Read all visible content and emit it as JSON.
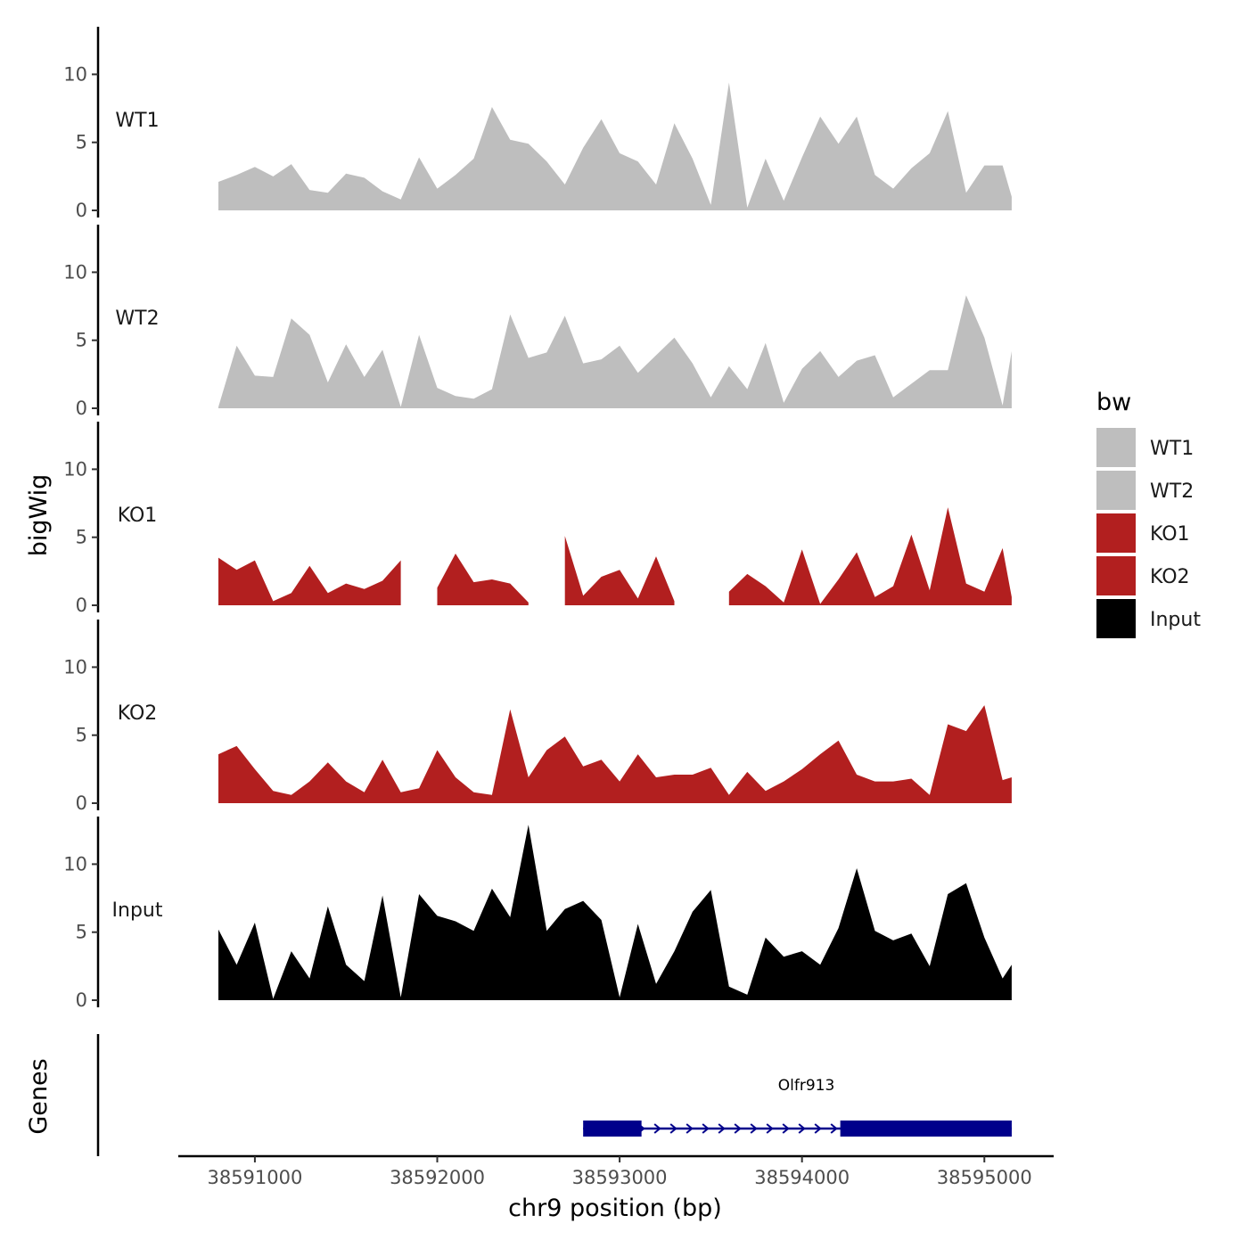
{
  "chart_data": {
    "type": "area",
    "chromosome": "chr9",
    "xlabel": "chr9 position (bp)",
    "ylabel": "bigWig",
    "genes_label": "Genes",
    "xlim": [
      38590580,
      38595380
    ],
    "x_ticks": [
      38591000,
      38592000,
      38593000,
      38594000,
      38595000
    ],
    "x_tick_labels": [
      "38591000",
      "38592000",
      "38593000",
      "38594000",
      "38595000"
    ],
    "ylim": [
      0,
      13.5
    ],
    "y_ticks": [
      0,
      5,
      10
    ],
    "y_tick_labels": [
      "0",
      "5",
      "10"
    ],
    "legend": {
      "title": "bw",
      "position": "right",
      "entries": [
        {
          "label": "WT1",
          "color": "#bebebe"
        },
        {
          "label": "WT2",
          "color": "#bebebe"
        },
        {
          "label": "KO1",
          "color": "#b21f1f"
        },
        {
          "label": "KO2",
          "color": "#b21f1f"
        },
        {
          "label": "Input",
          "color": "#000000"
        }
      ]
    },
    "x_positions": [
      38590800,
      38590900,
      38591000,
      38591100,
      38591200,
      38591300,
      38591400,
      38591500,
      38591600,
      38591700,
      38591800,
      38591900,
      38592000,
      38592100,
      38592200,
      38592300,
      38592400,
      38592500,
      38592600,
      38592700,
      38592800,
      38592900,
      38593000,
      38593100,
      38593200,
      38593300,
      38593400,
      38593500,
      38593600,
      38593700,
      38593800,
      38593900,
      38594000,
      38594100,
      38594200,
      38594300,
      38594400,
      38594500,
      38594600,
      38594700,
      38594800,
      38594900,
      38595000,
      38595100,
      38595150
    ],
    "series": [
      {
        "name": "WT1",
        "color": "#bebebe",
        "values": [
          2.1,
          2.6,
          3.2,
          2.5,
          3.4,
          1.5,
          1.3,
          2.7,
          2.4,
          1.4,
          0.8,
          3.9,
          1.6,
          2.6,
          3.8,
          7.6,
          5.2,
          4.9,
          3.6,
          1.9,
          4.6,
          6.7,
          4.2,
          3.6,
          1.9,
          6.4,
          3.8,
          0.4,
          9.4,
          0.2,
          3.8,
          0.7,
          3.9,
          6.9,
          4.9,
          6.9,
          2.6,
          1.6,
          3.1,
          4.2,
          7.3,
          1.3,
          3.3,
          3.3,
          1.0
        ]
      },
      {
        "name": "WT2",
        "color": "#bebebe",
        "values": [
          0.1,
          4.6,
          2.4,
          2.3,
          6.6,
          5.4,
          1.9,
          4.7,
          2.3,
          4.3,
          0.1,
          5.4,
          1.5,
          0.9,
          0.7,
          1.4,
          6.9,
          3.7,
          4.1,
          6.8,
          3.3,
          3.6,
          4.6,
          2.6,
          3.9,
          5.2,
          3.3,
          0.8,
          3.1,
          1.4,
          4.8,
          0.4,
          2.9,
          4.2,
          2.3,
          3.5,
          3.9,
          0.8,
          1.8,
          2.8,
          2.8,
          8.3,
          5.2,
          0.2,
          4.2
        ]
      },
      {
        "name": "KO1",
        "color": "#b21f1f",
        "values": [
          3.5,
          2.6,
          3.3,
          0.3,
          0.9,
          2.9,
          0.9,
          1.6,
          1.2,
          1.8,
          3.3,
          null,
          1.3,
          3.8,
          1.7,
          1.9,
          1.6,
          0.2,
          null,
          5.1,
          0.7,
          2.1,
          2.6,
          0.5,
          3.6,
          0.3,
          null,
          null,
          1.0,
          2.3,
          1.4,
          0.2,
          4.1,
          0.1,
          1.9,
          3.9,
          0.6,
          1.4,
          5.2,
          1.1,
          7.2,
          1.6,
          1.0,
          4.2,
          0.6
        ]
      },
      {
        "name": "KO2",
        "color": "#b21f1f",
        "values": [
          3.6,
          4.2,
          2.5,
          0.9,
          0.6,
          1.6,
          3.0,
          1.6,
          0.8,
          3.2,
          0.8,
          1.1,
          3.9,
          1.9,
          0.8,
          0.6,
          6.9,
          1.9,
          3.9,
          4.9,
          2.7,
          3.2,
          1.6,
          3.6,
          1.9,
          2.1,
          2.1,
          2.6,
          0.6,
          2.3,
          0.9,
          1.6,
          2.5,
          3.6,
          4.6,
          2.1,
          1.6,
          1.6,
          1.8,
          0.6,
          5.8,
          5.3,
          7.2,
          1.7,
          1.9
        ]
      },
      {
        "name": "Input",
        "color": "#000000",
        "values": [
          5.2,
          2.6,
          5.7,
          0.1,
          3.6,
          1.6,
          6.9,
          2.6,
          1.4,
          7.7,
          0.2,
          7.8,
          6.2,
          5.8,
          5.1,
          8.2,
          6.1,
          12.9,
          5.1,
          6.7,
          7.3,
          5.9,
          0.2,
          5.6,
          1.2,
          3.6,
          6.5,
          8.1,
          1.0,
          0.4,
          4.6,
          3.2,
          3.6,
          2.6,
          5.3,
          9.7,
          5.1,
          4.4,
          4.9,
          2.5,
          7.8,
          8.6,
          4.6,
          1.6,
          2.6
        ]
      }
    ],
    "genes": [
      {
        "name": "Olfr913",
        "start": 38592800,
        "end": 38595150,
        "strand": "+",
        "exons": [
          [
            38592800,
            38593120
          ],
          [
            38594210,
            38595150
          ]
        ],
        "color": "#00008b"
      }
    ]
  }
}
